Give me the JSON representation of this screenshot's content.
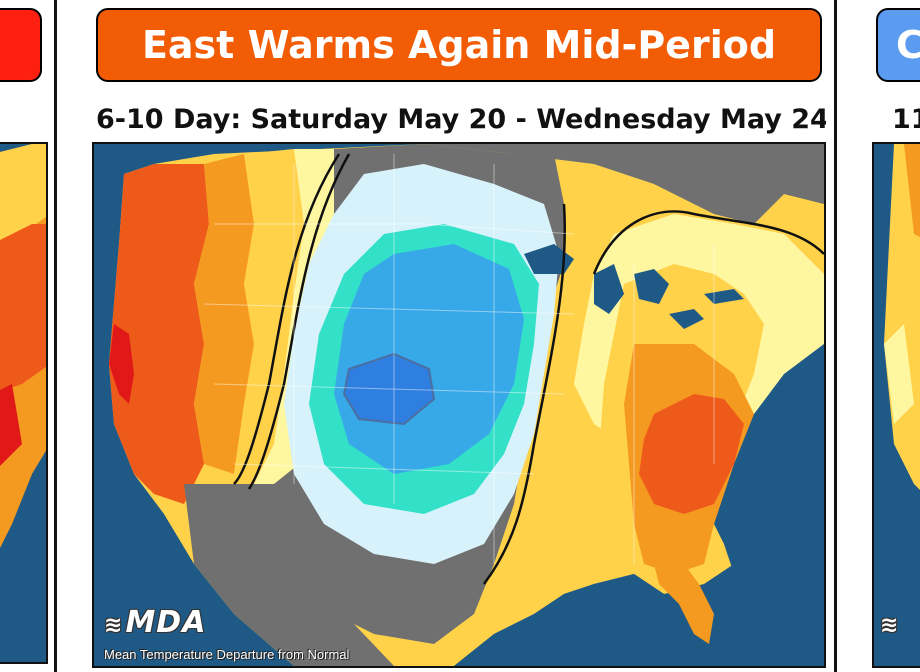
{
  "panels": [
    {
      "id": "left",
      "title": "",
      "title_color": "#ff1f10"
    },
    {
      "id": "center",
      "title": "East Warms Again Mid-Period",
      "title_color": "#f25c05",
      "subtitle": "6-10 Day: Saturday May 20 - Wednesday May 24"
    },
    {
      "id": "right",
      "title": "C",
      "title_color": "#5b9cf0",
      "subtitle": "11"
    }
  ],
  "brand": {
    "name": "MDA",
    "caption": "Mean Temperature Departure from Normal"
  },
  "colors": {
    "ocean": "#1f5a86",
    "land_dark_gray": "#707070",
    "strong_warm": "#ee5a1a",
    "warm": "#f59a20",
    "light_warm": "#ffd24a",
    "slight_warm": "#fff7a0",
    "near_normal": "#d8f2fb",
    "cool": "#33e0c8",
    "colder": "#37a8e8",
    "coldest": "#2f7fe0",
    "extreme_warm": "#e01818"
  }
}
